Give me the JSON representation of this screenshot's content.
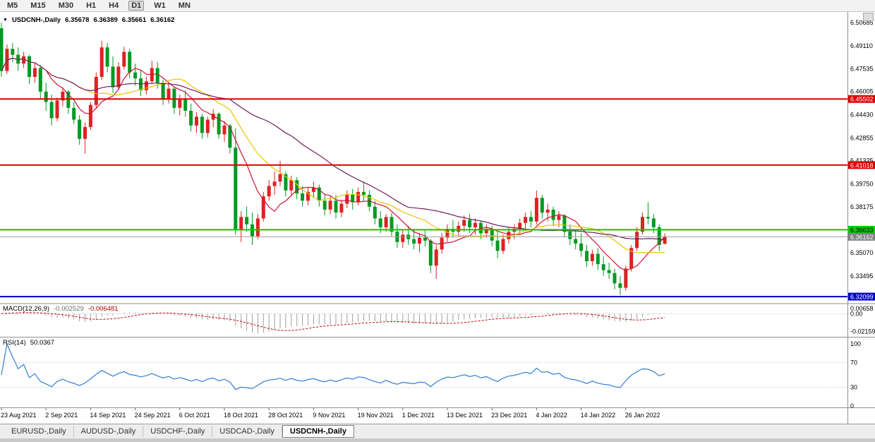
{
  "toolbar": {
    "timeframes": [
      {
        "label": "M5",
        "active": false
      },
      {
        "label": "M15",
        "active": false
      },
      {
        "label": "M30",
        "active": false
      },
      {
        "label": "H1",
        "active": false
      },
      {
        "label": "H4",
        "active": false
      },
      {
        "label": "D1",
        "active": true
      },
      {
        "label": "W1",
        "active": false
      },
      {
        "label": "MN",
        "active": false
      }
    ]
  },
  "chart": {
    "collapse_icon": "▼",
    "title_symbol": "USDCNH-,Daily",
    "ohlc": {
      "open": "6.35678",
      "high": "6.36389",
      "low": "6.35661",
      "close": "6.36162"
    },
    "price_ticks": [
      "6.50685",
      "6.49110",
      "6.47535",
      "6.46005",
      "6.44430",
      "6.42855",
      "6.41325",
      "6.39750",
      "6.38175",
      "6.36645",
      "6.35070",
      "6.33495"
    ],
    "hlines": [
      {
        "name": "resistance-line-upper",
        "price": 6.45502,
        "label": "6.45502",
        "line": "#dd0000",
        "width": 2,
        "label_bg": "#dd0000",
        "label_fg": "#ffffff"
      },
      {
        "name": "resistance-line-lower",
        "price": 6.41018,
        "label": "6.41018",
        "line": "#dd0000",
        "width": 2,
        "label_bg": "#dd0000",
        "label_fg": "#ffffff"
      },
      {
        "name": "support-line-green",
        "price": 6.36633,
        "label": "6.36633",
        "line": "#00d000",
        "width": 2,
        "label_bg": "#00d000",
        "label_fg": "#000000"
      },
      {
        "name": "current-price-line",
        "price": 6.36162,
        "label": "6.36162",
        "line": "#9a9a9a",
        "width": 1,
        "label_bg": "#808080",
        "label_fg": "#ffffff"
      },
      {
        "name": "support-line-blue",
        "price": 6.32099,
        "label": "6.32099",
        "line": "#0000cd",
        "width": 2,
        "label_bg": "#0000cd",
        "label_fg": "#ffffff"
      }
    ],
    "macd": {
      "label": "MACD(12,26,9)",
      "value1": "-0.002529",
      "value2": "-0.006481",
      "ticks": [
        {
          "label": "0.00658",
          "value": 0.00658
        },
        {
          "label": "0.00",
          "value": 0
        },
        {
          "label": "-0.02159",
          "value": -0.02159
        }
      ]
    },
    "rsi": {
      "label": "RSI(14)",
      "value": "50.0367",
      "ticks": [
        {
          "label": "100",
          "value": 100
        },
        {
          "label": "70",
          "value": 70
        },
        {
          "label": "30",
          "value": 30
        },
        {
          "label": "0",
          "value": 0
        }
      ],
      "levels": [
        70,
        30
      ]
    }
  },
  "tabs": [
    {
      "label": "EURUSD-,Daily",
      "active": false
    },
    {
      "label": "AUDUSD-,Daily",
      "active": false
    },
    {
      "label": "USDCHF-,Daily",
      "active": false
    },
    {
      "label": "USDCAD-,Daily",
      "active": false
    },
    {
      "label": "USDCNH-,Daily",
      "active": true
    }
  ],
  "chart_data": {
    "type": "candlestick",
    "symbol": "USDCNH",
    "period": "Daily",
    "ylim": [
      6.3165,
      6.514
    ],
    "indicators": {
      "macd_params": [
        12,
        26,
        9
      ],
      "macd_values": [
        -0.002529,
        -0.006481
      ],
      "rsi_period": 14,
      "rsi_value": 50.0367
    },
    "levels": [
      6.45502,
      6.41018,
      6.36633,
      6.36162,
      6.32099
    ],
    "x_labels": [
      "23 Aug 2021",
      "2 Sep 2021",
      "14 Sep 2021",
      "24 Sep 2021",
      "6 Oct 2021",
      "18 Oct 2021",
      "28 Oct 2021",
      "9 Nov 2021",
      "19 Nov 2021",
      "1 Dec 2021",
      "13 Dec 2021",
      "23 Dec 2021",
      "4 Jan 2022",
      "14 Jan 2022",
      "26 Jan 2022"
    ],
    "bars_per_label": 8,
    "styles": {
      "up_color": "#dd2222",
      "down_color": "#009a22",
      "ma_fast_color": "#cf1235",
      "ma_mid_color": "#e8c400",
      "ma_slow_color": "#701a5c",
      "rsi_color": "#2f7ed8",
      "macd_hist_color": "#9e9e9e",
      "macd_signal_color": "#cc0000"
    },
    "candles": [
      [
        6.503,
        6.5068,
        6.47,
        6.474
      ],
      [
        6.474,
        6.492,
        6.472,
        6.489
      ],
      [
        6.489,
        6.493,
        6.48,
        6.485
      ],
      [
        6.485,
        6.49,
        6.474,
        6.479
      ],
      [
        6.479,
        6.487,
        6.476,
        6.484
      ],
      [
        6.484,
        6.485,
        6.465,
        6.47
      ],
      [
        6.47,
        6.479,
        6.466,
        6.476
      ],
      [
        6.476,
        6.478,
        6.455,
        6.46
      ],
      [
        6.46,
        6.466,
        6.447,
        6.453
      ],
      [
        6.453,
        6.458,
        6.437,
        6.442
      ],
      [
        6.442,
        6.456,
        6.44,
        6.454
      ],
      [
        6.454,
        6.463,
        6.45,
        6.46
      ],
      [
        6.46,
        6.461,
        6.445,
        6.449
      ],
      [
        6.449,
        6.453,
        6.438,
        6.441
      ],
      [
        6.441,
        6.444,
        6.424,
        6.428
      ],
      [
        6.428,
        6.439,
        6.418,
        6.436
      ],
      [
        6.436,
        6.453,
        6.434,
        6.451
      ],
      [
        6.451,
        6.473,
        6.449,
        6.47
      ],
      [
        6.47,
        6.4945,
        6.468,
        6.49
      ],
      [
        6.49,
        6.493,
        6.473,
        6.477
      ],
      [
        6.477,
        6.484,
        6.459,
        6.463
      ],
      [
        6.463,
        6.48,
        6.461,
        6.477
      ],
      [
        6.477,
        6.4905,
        6.475,
        6.487
      ],
      [
        6.487,
        6.489,
        6.469,
        6.473
      ],
      [
        6.473,
        6.479,
        6.464,
        6.469
      ],
      [
        6.469,
        6.475,
        6.457,
        6.461
      ],
      [
        6.461,
        6.47,
        6.458,
        6.467
      ],
      [
        6.467,
        6.481,
        6.465,
        6.476
      ],
      [
        6.476,
        6.48,
        6.462,
        6.466
      ],
      [
        6.466,
        6.468,
        6.451,
        6.455
      ],
      [
        6.455,
        6.465,
        6.452,
        6.462
      ],
      [
        6.462,
        6.463,
        6.445,
        6.449
      ],
      [
        6.449,
        6.458,
        6.444,
        6.455
      ],
      [
        6.455,
        6.461,
        6.443,
        6.447
      ],
      [
        6.447,
        6.452,
        6.433,
        6.437
      ],
      [
        6.437,
        6.446,
        6.432,
        6.443
      ],
      [
        6.443,
        6.445,
        6.428,
        6.432
      ],
      [
        6.432,
        6.443,
        6.429,
        6.441
      ],
      [
        6.441,
        6.448,
        6.436,
        6.445
      ],
      [
        6.445,
        6.446,
        6.428,
        6.431
      ],
      [
        6.431,
        6.44,
        6.426,
        6.437
      ],
      [
        6.437,
        6.438,
        6.418,
        6.422
      ],
      [
        6.422,
        6.435,
        6.363,
        6.366
      ],
      [
        6.366,
        6.379,
        6.358,
        6.375
      ],
      [
        6.375,
        6.382,
        6.365,
        6.37
      ],
      [
        6.37,
        6.378,
        6.356,
        6.362
      ],
      [
        6.362,
        6.377,
        6.36,
        6.374
      ],
      [
        6.374,
        6.392,
        6.372,
        6.389
      ],
      [
        6.389,
        6.4,
        6.386,
        6.396
      ],
      [
        6.396,
        6.406,
        6.39,
        6.399
      ],
      [
        6.399,
        6.413,
        6.396,
        6.404
      ],
      [
        6.404,
        6.406,
        6.389,
        6.393
      ],
      [
        6.393,
        6.403,
        6.39,
        6.4
      ],
      [
        6.4,
        6.402,
        6.387,
        6.391
      ],
      [
        6.391,
        6.396,
        6.382,
        6.386
      ],
      [
        6.386,
        6.395,
        6.383,
        6.392
      ],
      [
        6.392,
        6.399,
        6.388,
        6.395
      ],
      [
        6.395,
        6.397,
        6.382,
        6.386
      ],
      [
        6.386,
        6.39,
        6.376,
        6.38
      ],
      [
        6.38,
        6.389,
        6.377,
        6.386
      ],
      [
        6.386,
        6.39,
        6.374,
        6.378
      ],
      [
        6.378,
        6.387,
        6.375,
        6.384
      ],
      [
        6.384,
        6.393,
        6.381,
        6.39
      ],
      [
        6.39,
        6.394,
        6.38,
        6.385
      ],
      [
        6.385,
        6.395,
        6.383,
        6.392
      ],
      [
        6.392,
        6.399,
        6.386,
        6.39
      ],
      [
        6.39,
        6.393,
        6.379,
        6.382
      ],
      [
        6.382,
        6.386,
        6.37,
        6.374
      ],
      [
        6.374,
        6.379,
        6.364,
        6.368
      ],
      [
        6.368,
        6.377,
        6.365,
        6.375
      ],
      [
        6.375,
        6.378,
        6.362,
        6.365
      ],
      [
        6.365,
        6.37,
        6.354,
        6.358
      ],
      [
        6.358,
        6.366,
        6.354,
        6.363
      ],
      [
        6.363,
        6.369,
        6.356,
        6.36
      ],
      [
        6.36,
        6.366,
        6.353,
        6.357
      ],
      [
        6.357,
        6.364,
        6.351,
        6.361
      ],
      [
        6.361,
        6.366,
        6.355,
        6.359
      ],
      [
        6.359,
        6.36,
        6.337,
        6.342
      ],
      [
        6.342,
        6.356,
        6.333,
        6.353
      ],
      [
        6.353,
        6.364,
        6.35,
        6.361
      ],
      [
        6.361,
        6.37,
        6.358,
        6.367
      ],
      [
        6.367,
        6.373,
        6.361,
        6.365
      ],
      [
        6.365,
        6.372,
        6.362,
        6.369
      ],
      [
        6.369,
        6.376,
        6.365,
        6.373
      ],
      [
        6.373,
        6.377,
        6.364,
        6.368
      ],
      [
        6.368,
        6.374,
        6.363,
        6.371
      ],
      [
        6.371,
        6.372,
        6.36,
        6.364
      ],
      [
        6.364,
        6.37,
        6.361,
        6.367
      ],
      [
        6.367,
        6.369,
        6.355,
        6.359
      ],
      [
        6.359,
        6.365,
        6.347,
        6.352
      ],
      [
        6.352,
        6.363,
        6.35,
        6.36
      ],
      [
        6.36,
        6.368,
        6.357,
        6.365
      ],
      [
        6.365,
        6.37,
        6.36,
        6.367
      ],
      [
        6.367,
        6.374,
        6.363,
        6.371
      ],
      [
        6.371,
        6.378,
        6.367,
        6.375
      ],
      [
        6.375,
        6.379,
        6.368,
        6.372
      ],
      [
        6.372,
        6.393,
        6.37,
        6.388
      ],
      [
        6.388,
        6.39,
        6.374,
        6.378
      ],
      [
        6.378,
        6.384,
        6.372,
        6.38
      ],
      [
        6.38,
        6.382,
        6.369,
        6.373
      ],
      [
        6.373,
        6.379,
        6.368,
        6.376
      ],
      [
        6.376,
        6.377,
        6.361,
        6.365
      ],
      [
        6.365,
        6.37,
        6.356,
        6.36
      ],
      [
        6.36,
        6.366,
        6.353,
        6.357
      ],
      [
        6.357,
        6.364,
        6.348,
        6.352
      ],
      [
        6.352,
        6.356,
        6.341,
        6.345
      ],
      [
        6.345,
        6.353,
        6.342,
        6.35
      ],
      [
        6.35,
        6.354,
        6.339,
        6.343
      ],
      [
        6.343,
        6.348,
        6.335,
        6.339
      ],
      [
        6.339,
        6.344,
        6.333,
        6.337
      ],
      [
        6.337,
        6.34,
        6.326,
        6.33
      ],
      [
        6.33,
        6.335,
        6.322,
        6.327
      ],
      [
        6.327,
        6.342,
        6.325,
        6.34
      ],
      [
        6.34,
        6.356,
        6.338,
        6.354
      ],
      [
        6.354,
        6.368,
        6.352,
        6.365
      ],
      [
        6.365,
        6.378,
        6.363,
        6.375
      ],
      [
        6.375,
        6.385,
        6.37,
        6.374
      ],
      [
        6.374,
        6.377,
        6.364,
        6.368
      ],
      [
        6.368,
        6.37,
        6.352,
        6.356
      ],
      [
        6.35678,
        6.36389,
        6.35661,
        6.36162
      ]
    ]
  }
}
